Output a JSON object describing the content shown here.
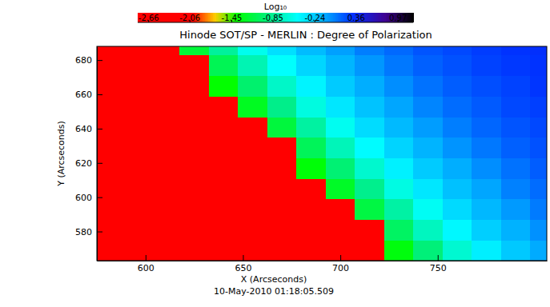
{
  "chart_data": {
    "type": "heatmap",
    "title": "Hinode SOT/SP - MERLIN : Degree of Polarization",
    "subtitle": "10-May-2010 01:18:05.509",
    "x_label": "X (Arcseconds)",
    "y_label": "Y (Arcseconds)",
    "xlim": [
      575,
      806
    ],
    "ylim": [
      563,
      688
    ],
    "xticks": [
      600,
      650,
      700,
      750
    ],
    "yticks": [
      580,
      600,
      620,
      640,
      660,
      680
    ],
    "x": [
      580,
      595,
      610,
      625,
      640,
      655,
      670,
      685,
      700,
      715,
      730,
      745,
      760,
      775,
      790,
      805
    ],
    "y": [
      569,
      581,
      593,
      605,
      617,
      629,
      641,
      653,
      665,
      677,
      689
    ],
    "z": [
      [
        -2.6,
        -2.6,
        -2.6,
        -2.6,
        -2.6,
        -2.6,
        -2.6,
        -2.6,
        -2.6,
        -2.6,
        -1.33,
        -0.95,
        -0.65,
        -0.42,
        -0.24,
        -0.1
      ],
      [
        -2.6,
        -2.6,
        -2.6,
        -2.6,
        -2.6,
        -2.6,
        -2.6,
        -2.6,
        -2.6,
        -2.6,
        -1.03,
        -0.71,
        -0.46,
        -0.27,
        -0.13,
        -0.01
      ],
      [
        -2.6,
        -2.6,
        -2.6,
        -2.6,
        -2.6,
        -2.6,
        -2.6,
        -2.6,
        -2.6,
        -1.14,
        -0.8,
        -0.53,
        -0.32,
        -0.16,
        -0.04,
        0.06
      ],
      [
        -2.6,
        -2.6,
        -2.6,
        -2.6,
        -2.6,
        -2.6,
        -2.6,
        -2.6,
        -1.24,
        -0.88,
        -0.59,
        -0.38,
        -0.2,
        -0.08,
        0.04,
        0.11
      ],
      [
        -2.6,
        -2.6,
        -2.6,
        -2.6,
        -2.6,
        -2.6,
        -2.6,
        -1.35,
        -0.97,
        -0.66,
        -0.43,
        -0.25,
        -0.11,
        0,
        0.09,
        0.16
      ],
      [
        -2.6,
        -2.6,
        -2.6,
        -2.6,
        -2.6,
        -2.6,
        -2.6,
        -1.06,
        -0.73,
        -0.48,
        -0.29,
        -0.14,
        -0.02,
        0.07,
        0.15,
        0.2
      ],
      [
        -2.6,
        -2.6,
        -2.6,
        -2.6,
        -2.6,
        -2.6,
        -1.16,
        -0.81,
        -0.54,
        -0.33,
        -0.17,
        -0.05,
        0.05,
        0.13,
        0.19,
        0.23
      ],
      [
        -2.6,
        -2.6,
        -2.6,
        -2.6,
        -2.6,
        -1.26,
        -0.89,
        -0.6,
        -0.38,
        -0.21,
        -0.08,
        0.03,
        0.11,
        0.17,
        0.23,
        0.26
      ],
      [
        -2.6,
        -2.6,
        -2.6,
        -2.6,
        -1.38,
        -0.99,
        -0.68,
        -0.44,
        -0.25,
        -0.11,
        0,
        0.09,
        0.16,
        0.21,
        0.25,
        0.29
      ],
      [
        -2.6,
        -2.6,
        -2.6,
        -2.6,
        -1.08,
        -0.75,
        -0.5,
        -0.3,
        -0.15,
        -0.03,
        0.07,
        0.15,
        0.2,
        0.25,
        0.28,
        0.3
      ],
      [
        -2.6,
        -2.6,
        -2.6,
        -1.18,
        -0.83,
        -0.55,
        -0.35,
        -0.18,
        -0.06,
        0.05,
        0.12,
        0.19,
        0.23,
        0.27,
        0.3,
        0.32
      ]
    ],
    "colorbar": {
      "label": "Log₁₀",
      "range": [
        -2.82,
        1.19
      ],
      "ticks": [
        -2.66,
        -2.06,
        -1.45,
        -0.85,
        -0.24,
        0.36,
        0.97
      ]
    }
  }
}
